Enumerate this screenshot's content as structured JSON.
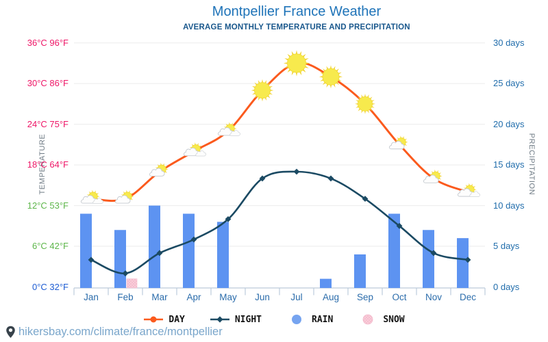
{
  "header": {
    "title": "Montpellier France Weather",
    "subtitle": "AVERAGE MONTHLY TEMPERATURE AND PRECIPITATION"
  },
  "axes": {
    "temperature_label": "TEMPERATURE",
    "precipitation_label": "PRECIPITATION",
    "temperature_ticks": [
      {
        "label": "36°C 96°F",
        "c": 36,
        "color": "#ee1566"
      },
      {
        "label": "30°C 86°F",
        "c": 30,
        "color": "#ee1566"
      },
      {
        "label": "24°C 75°F",
        "c": 24,
        "color": "#ee1566"
      },
      {
        "label": "18°C 64°F",
        "c": 18,
        "color": "#ee1566"
      },
      {
        "label": "12°C 53°F",
        "c": 12,
        "color": "#5cb649"
      },
      {
        "label": "6°C 42°F",
        "c": 6,
        "color": "#5cb649"
      },
      {
        "label": "0°C 32°F",
        "c": 0,
        "color": "#1d5cd3"
      }
    ],
    "precipitation_ticks": [
      {
        "label": "30 days",
        "d": 30
      },
      {
        "label": "25 days",
        "d": 25
      },
      {
        "label": "20 days",
        "d": 20
      },
      {
        "label": "15 days",
        "d": 15
      },
      {
        "label": "10 days",
        "d": 10
      },
      {
        "label": "5 days",
        "d": 5
      },
      {
        "label": "0 days",
        "d": 0
      }
    ]
  },
  "chart_data": {
    "type": "line+bar",
    "categories": [
      "Jan",
      "Feb",
      "Mar",
      "Apr",
      "May",
      "Jun",
      "Jul",
      "Aug",
      "Sep",
      "Oct",
      "Nov",
      "Dec"
    ],
    "temp_axis_range_c": [
      0,
      36
    ],
    "precip_axis_range_days": [
      0,
      30
    ],
    "grid": "horizontal",
    "series": [
      {
        "name": "DAY",
        "type": "line",
        "unit": "°C",
        "color": "#fb5a1d",
        "values": [
          13,
          13,
          17,
          20,
          23,
          29,
          33,
          31,
          27,
          21,
          16,
          14
        ],
        "icons": [
          "sun-behind-clouds",
          "sun-behind-cloud",
          "sun-behind-cloud",
          "sun-behind-clouds",
          "sun-behind-clouds",
          "sun",
          "sun",
          "sun",
          "sun",
          "sun-behind-cloud",
          "sun-behind-cloud",
          "sun-behind-clouds"
        ]
      },
      {
        "name": "NIGHT",
        "type": "line",
        "unit": "°C",
        "color": "#1b4a63",
        "values": [
          4,
          2,
          5,
          7,
          10,
          16,
          17,
          16,
          13,
          9,
          5,
          4
        ]
      },
      {
        "name": "RAIN",
        "type": "bar",
        "unit": "days",
        "color": "#5d93f1",
        "values": [
          9,
          7,
          10,
          9,
          8,
          0,
          0,
          1,
          4,
          9,
          7,
          6
        ]
      },
      {
        "name": "SNOW",
        "type": "bar",
        "unit": "days",
        "color": "#f9cdd9",
        "values": [
          0,
          1,
          0,
          0,
          0,
          0,
          0,
          0,
          0,
          0,
          0,
          0
        ]
      }
    ]
  },
  "legend": {
    "items": [
      {
        "label": "DAY",
        "marker": "line-dot",
        "color": "#fb5a1d"
      },
      {
        "label": "NIGHT",
        "marker": "line-diamond",
        "color": "#1b4a63"
      },
      {
        "label": "RAIN",
        "marker": "circle",
        "color": "#76a4f0"
      },
      {
        "label": "SNOW",
        "marker": "circle-dotted",
        "color": "#f6bfd0"
      }
    ]
  },
  "footer": {
    "url": "hikersbay.com/climate/france/montpellier"
  },
  "colors": {
    "title": "#1e73b8",
    "subtitle": "#19578c",
    "gridline": "#ebebeb",
    "axis_line": "#bccadb",
    "month_label": "#2b6cab",
    "day_label": "#1f6cab",
    "day_line": "#fb5a1d",
    "night_line": "#1b4a63",
    "rain_bar": "#5d93f1",
    "snow_bar": "#f9cdd9",
    "footer_link": "#7aa6cb"
  }
}
